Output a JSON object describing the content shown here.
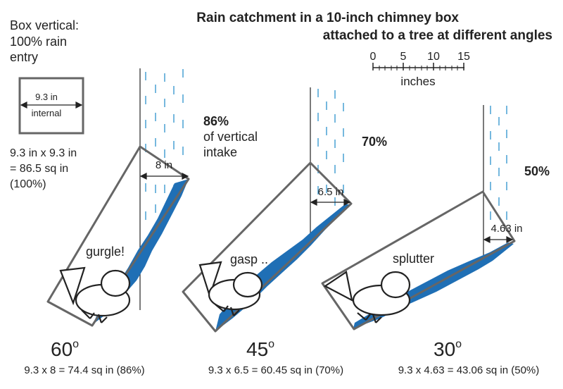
{
  "title": {
    "line1": "Rain catchment in a 10-inch chimney box",
    "line2": "attached to a tree at different angles"
  },
  "scale_bar": {
    "ticks": [
      "0",
      "5",
      "10",
      "15"
    ],
    "unit": "inches"
  },
  "reference_box": {
    "heading_lines": [
      "Box vertical:",
      "100% rain",
      "entry"
    ],
    "width_label": "9.3 in",
    "internal_label": "internal",
    "area_lines": [
      "9.3 in x 9.3 in",
      "= 86.5 sq in",
      "(100%)"
    ]
  },
  "panels": [
    {
      "angle": "60",
      "opening_label": "8 in",
      "percent": "86%",
      "percent_sub_lines": [
        "of vertical",
        "intake"
      ],
      "sound": "gurgle!",
      "formula": "9.3 x 8 = 74.4 sq in (86%)"
    },
    {
      "angle": "45",
      "opening_label": "6.5 in",
      "percent": "70%",
      "sound": "gasp ..",
      "formula": "9.3 x 6.5 = 60.45 sq in (70%)"
    },
    {
      "angle": "30",
      "opening_label": "4.63 in",
      "percent": "50%",
      "sound": "splutter",
      "formula": "9.3 x 4.63 = 43.06 sq in (50%)"
    }
  ],
  "colors": {
    "water": "#1f6fb5",
    "rain": "#3a9ad0",
    "box_outline": "#666666",
    "ink": "#222222"
  }
}
